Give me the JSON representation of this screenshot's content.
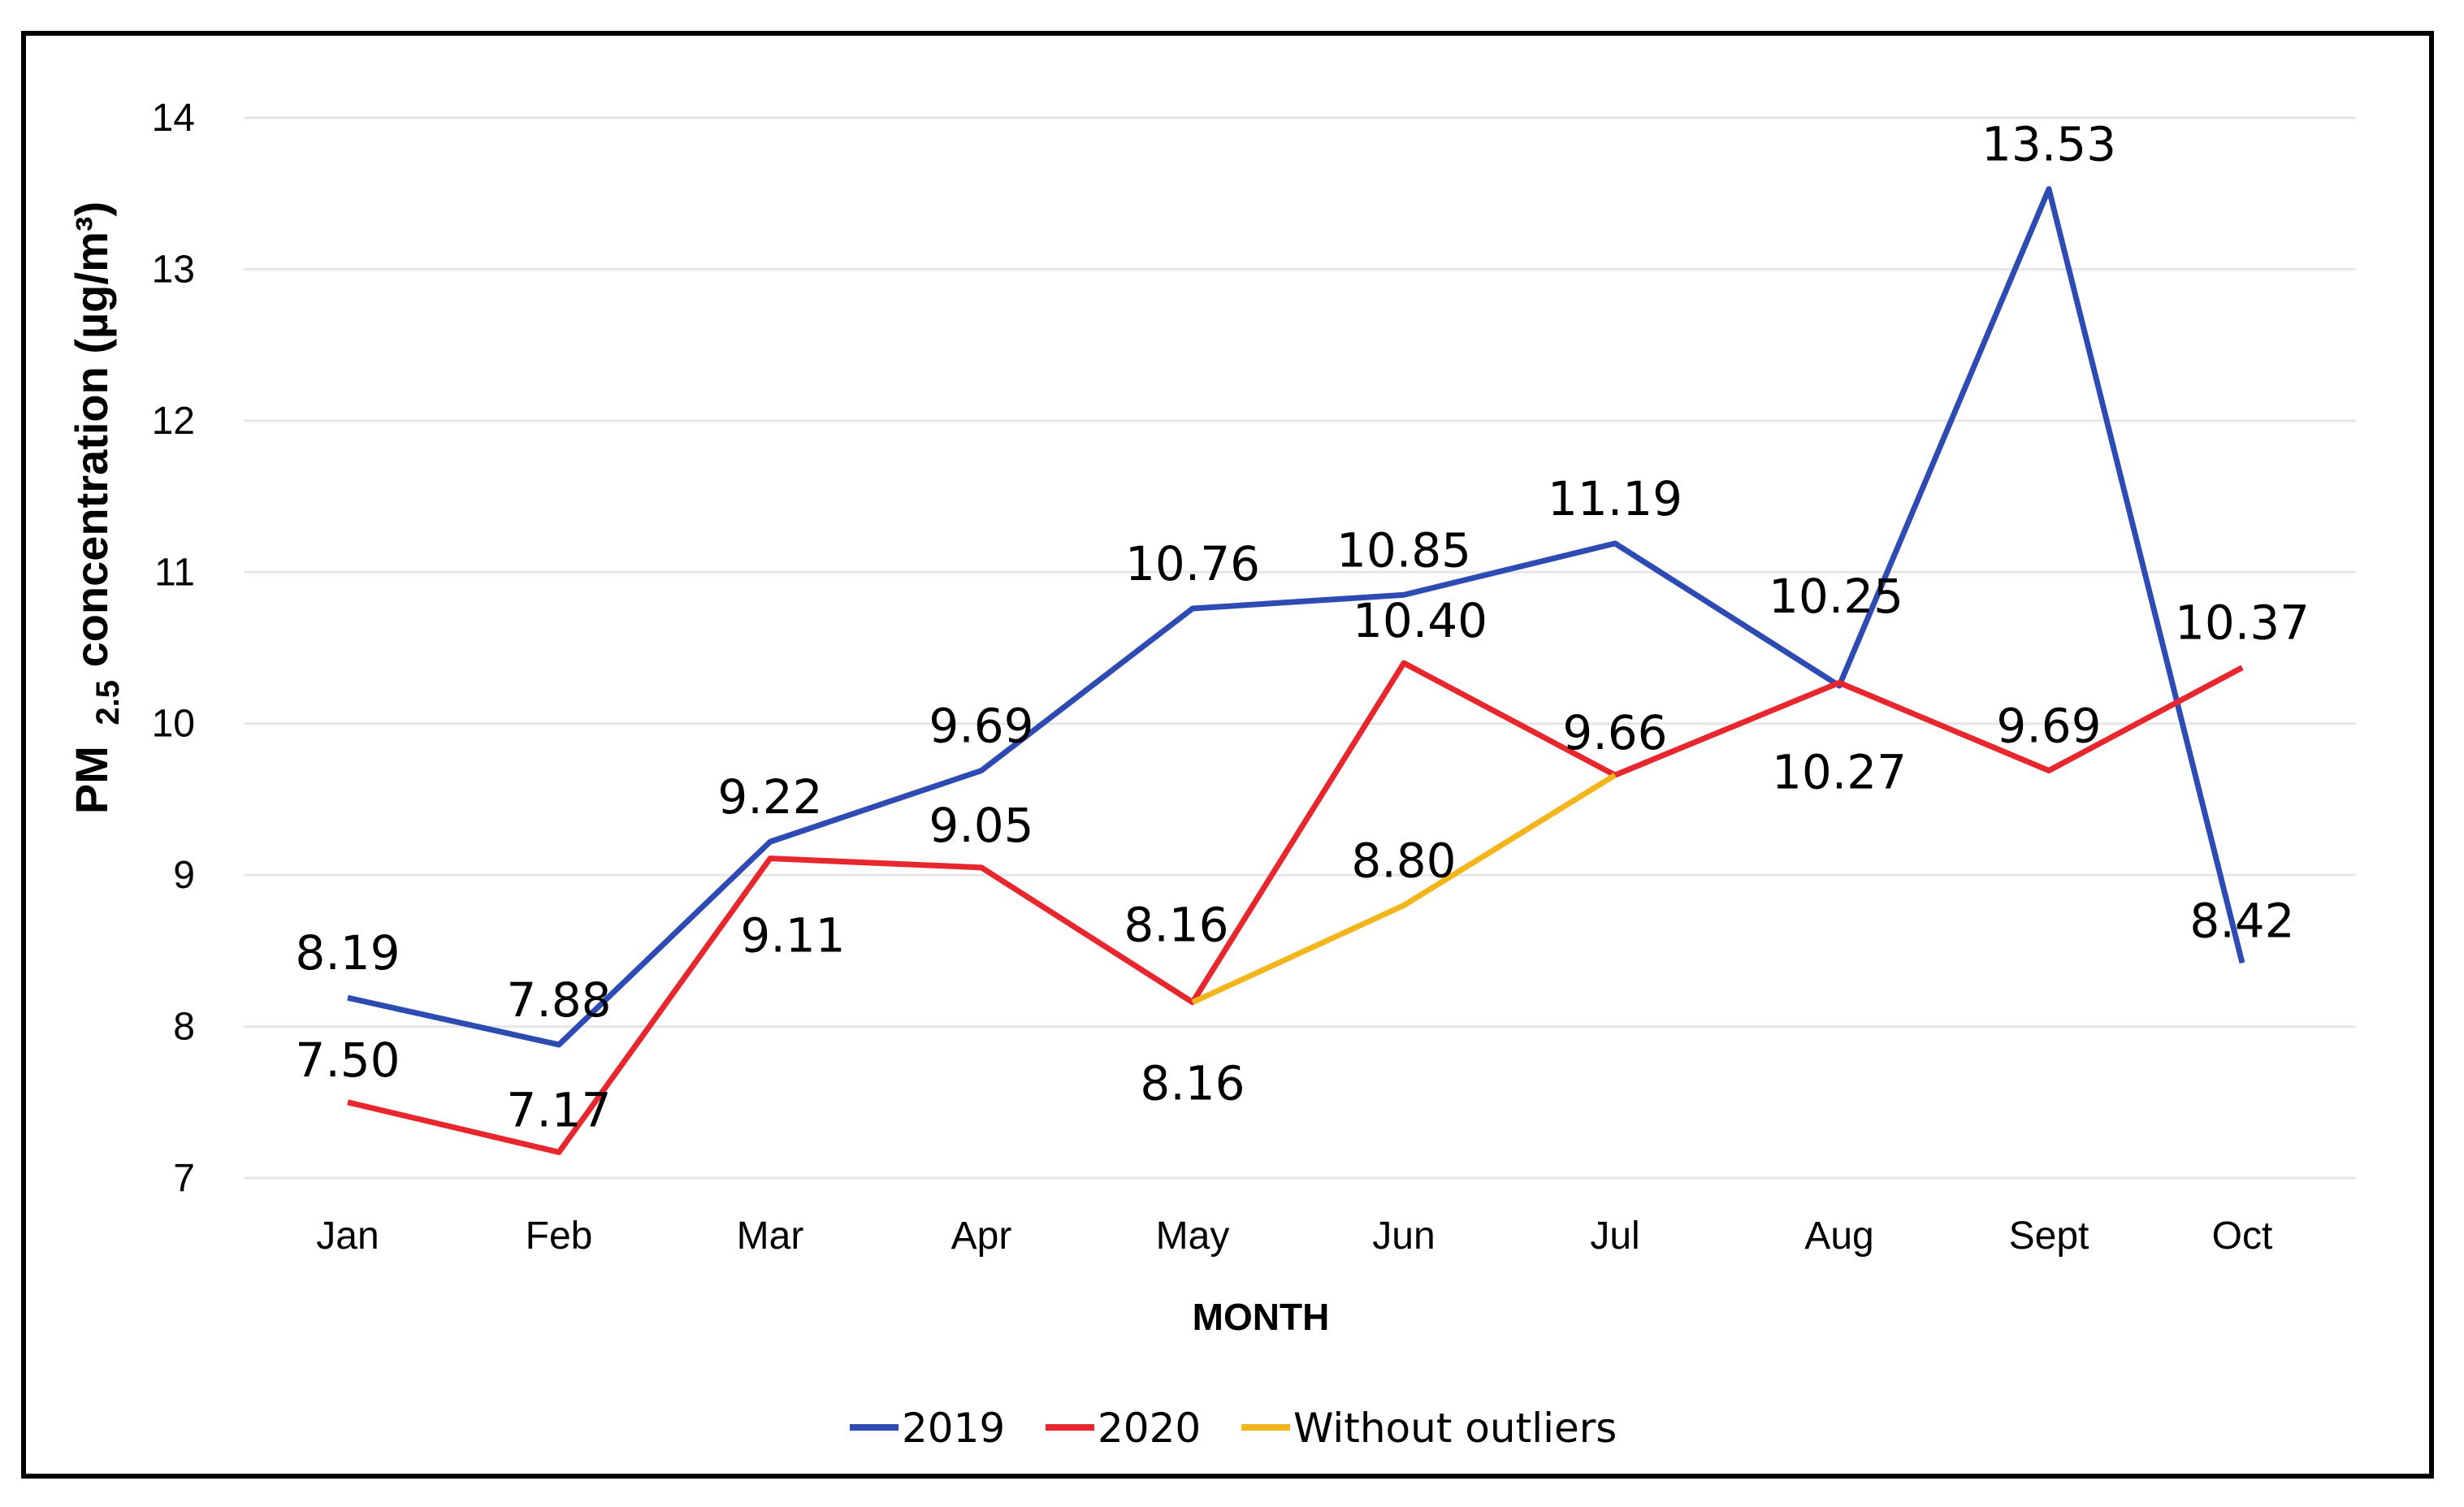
{
  "chart_data": {
    "type": "line",
    "title": "",
    "xlabel": "MONTH",
    "ylabel": {
      "prefix": "PM",
      "subscript": "2.5",
      "suffix": " concentration (µg/m³)"
    },
    "categories": [
      "Jan",
      "Feb",
      "Mar",
      "Apr",
      "May",
      "Jun",
      "Jul",
      "Aug",
      "Sept",
      "Oct"
    ],
    "ylim": [
      7,
      14
    ],
    "yticks": [
      "7",
      "8",
      "9",
      "10",
      "11",
      "12",
      "13",
      "14"
    ],
    "grid": true,
    "legend_position": "bottom",
    "series": [
      {
        "name": "2019",
        "color": "#2e4bb3",
        "values": [
          8.19,
          7.88,
          9.22,
          9.69,
          10.76,
          10.85,
          11.19,
          10.25,
          13.53,
          8.42
        ],
        "labels": [
          "8.19",
          "7.88",
          "9.22",
          "9.69",
          "10.76",
          "10.85",
          "11.19",
          "10.25",
          "13.53",
          "8.42"
        ]
      },
      {
        "name": "2020",
        "color": "#e8262d",
        "values": [
          7.5,
          7.17,
          9.11,
          9.05,
          8.16,
          10.4,
          9.66,
          10.27,
          9.69,
          10.37
        ],
        "labels": [
          "7.50",
          "7.17",
          "9.11",
          "9.05",
          "8.16",
          "10.40",
          "9.66",
          "10.27",
          "9.69",
          "10.37"
        ]
      },
      {
        "name": "Without outliers",
        "color": "#f2b51c",
        "points": [
          {
            "category": "May",
            "value": 8.16
          },
          {
            "category": "Jun",
            "value": 8.8
          },
          {
            "category": "Jul",
            "value": 9.66
          }
        ],
        "labels": [
          "8.16",
          "8.80"
        ]
      }
    ]
  }
}
